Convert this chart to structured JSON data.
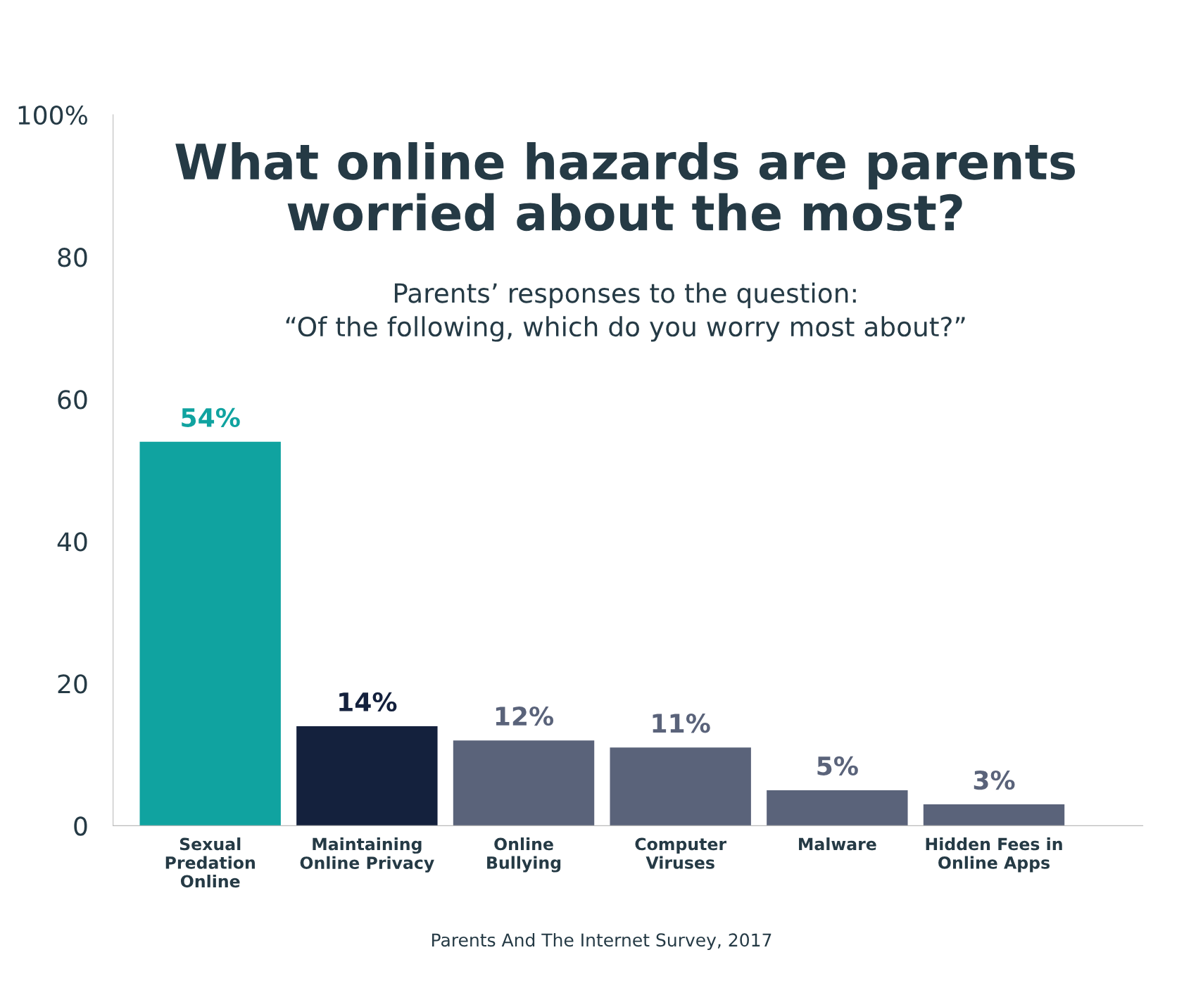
{
  "chart_data": {
    "type": "bar",
    "title": "What online hazards are parents\nworried about the most?",
    "subtitle": "Parents’ responses to the question:\n“Of the following, which do you worry most about?”",
    "categories": [
      "Sexual\nPredation\nOnline",
      "Maintaining\nOnline Privacy",
      "Online\nBullying",
      "Computer\nViruses",
      "Malware",
      "Hidden Fees in\nOnline Apps"
    ],
    "values": [
      54,
      14,
      12,
      11,
      5,
      3
    ],
    "colors": [
      "#10a3a0",
      "#14213d",
      "#5a637a",
      "#5a637a",
      "#5a637a",
      "#5a637a"
    ],
    "value_labels": [
      "54%",
      "14%",
      "12%",
      "11%",
      "5%",
      "3%"
    ],
    "ylim": [
      0,
      100
    ],
    "yticks": [
      0,
      20,
      40,
      60,
      80,
      {
        "value": 100,
        "label": "100%"
      }
    ],
    "grid": false,
    "legend": false,
    "annotations": [
      "Parents And The Internet Survey, 2017"
    ]
  }
}
